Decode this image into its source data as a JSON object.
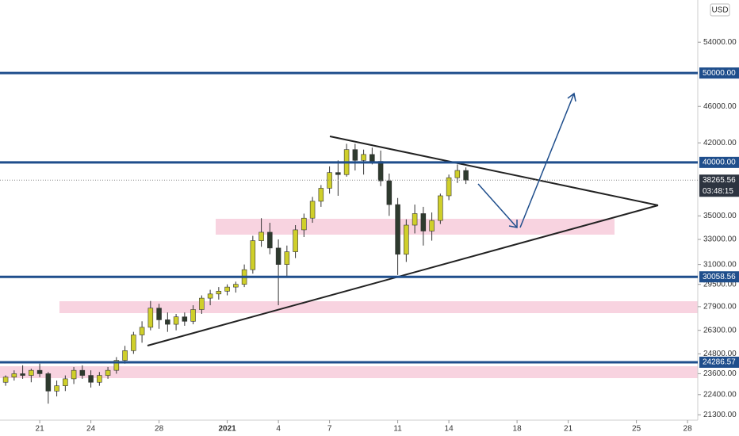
{
  "chart_data": {
    "type": "candlestick",
    "currency": "USD",
    "log_scale": true,
    "up_color": "#cfcf2a",
    "down_color": "#2e3a2e",
    "level_color": "#1f4e8c",
    "x": [
      -2.5,
      -2,
      -1.5,
      -1,
      -0.5,
      0,
      0.5,
      1,
      1.5,
      2,
      2.5,
      3,
      3.5,
      4,
      4.5,
      5,
      5.5,
      6,
      6.5,
      7,
      7.5,
      8,
      8.5,
      9,
      9.5,
      10,
      10.5,
      11,
      11.5,
      12,
      12.5,
      13,
      13.5,
      14,
      14.5,
      15,
      15.5,
      16,
      16.5,
      17,
      17.5,
      18,
      18.5,
      19,
      19.5,
      20,
      20.5,
      21,
      21.5,
      22,
      22.5,
      23,
      23.5,
      24,
      24.5,
      25
    ],
    "open": [
      22900,
      23100,
      23400,
      23600,
      23500,
      23800,
      23600,
      22600,
      22900,
      23300,
      23800,
      23500,
      23100,
      23500,
      23800,
      24400,
      25000,
      26000,
      26500,
      27800,
      27000,
      26700,
      27200,
      26900,
      27700,
      28500,
      28800,
      29000,
      29300,
      29500,
      30600,
      32900,
      33600,
      32300,
      31000,
      32000,
      33800,
      34800,
      36300,
      37500,
      39000,
      38800,
      41300,
      40200,
      40800,
      40100,
      38200,
      36000,
      31800,
      34200,
      35200,
      33700,
      34600,
      36800,
      38500,
      39200
    ],
    "high": [
      23300,
      23500,
      23800,
      24100,
      23900,
      24200,
      23700,
      23200,
      23500,
      24000,
      24100,
      23800,
      23700,
      24000,
      24600,
      25300,
      26200,
      26900,
      28300,
      28100,
      27500,
      27400,
      27500,
      28000,
      28700,
      29100,
      29300,
      29500,
      29700,
      31000,
      33300,
      34800,
      34400,
      33000,
      32500,
      34200,
      35200,
      36700,
      37800,
      39600,
      40200,
      41900,
      41900,
      41300,
      41500,
      41200,
      38900,
      36600,
      34700,
      36000,
      35800,
      35300,
      37000,
      38800,
      39800,
      39500
    ],
    "low": [
      22700,
      22900,
      23200,
      23300,
      23100,
      23400,
      21900,
      22300,
      22600,
      23000,
      23300,
      22800,
      22900,
      23300,
      23600,
      24200,
      24800,
      25500,
      26300,
      26400,
      26200,
      26300,
      26600,
      26700,
      27400,
      28000,
      28400,
      28700,
      28900,
      29300,
      30300,
      32400,
      31800,
      28000,
      30000,
      31500,
      33200,
      34400,
      35800,
      37000,
      36800,
      38600,
      39200,
      38800,
      39800,
      37700,
      35000,
      30200,
      31200,
      33500,
      32500,
      32900,
      34300,
      36400,
      38000,
      37900
    ],
    "close": [
      23100,
      23400,
      23600,
      23500,
      23800,
      23600,
      22600,
      22900,
      23300,
      23800,
      23500,
      23100,
      23500,
      23800,
      24400,
      25000,
      26000,
      26500,
      27800,
      27000,
      26700,
      27200,
      26900,
      27700,
      28500,
      28800,
      29000,
      29300,
      29500,
      30600,
      32900,
      33600,
      32300,
      31000,
      32000,
      33800,
      34800,
      36300,
      37500,
      39000,
      38800,
      41300,
      40200,
      40800,
      40100,
      38200,
      36000,
      31800,
      34200,
      35200,
      33700,
      34600,
      36800,
      38500,
      39200,
      38265.56
    ],
    "xlim": [
      -2.33,
      38.6
    ],
    "xticks": [
      {
        "value": 0,
        "label": "21"
      },
      {
        "value": 3,
        "label": "24"
      },
      {
        "value": 7,
        "label": "28"
      },
      {
        "value": 11,
        "label": "2021"
      },
      {
        "value": 14,
        "label": "4"
      },
      {
        "value": 17,
        "label": "7"
      },
      {
        "value": 21,
        "label": "11"
      },
      {
        "value": 24,
        "label": "14"
      },
      {
        "value": 28,
        "label": "18"
      },
      {
        "value": 31,
        "label": "21"
      },
      {
        "value": 35,
        "label": "25"
      },
      {
        "value": 38,
        "label": "28"
      }
    ],
    "ylim": [
      21100,
      60000
    ],
    "yticks": [
      {
        "value": 21300,
        "label": "21300.00"
      },
      {
        "value": 22400,
        "label": "22400.00"
      },
      {
        "value": 23600,
        "label": "23600.00"
      },
      {
        "value": 24800,
        "label": "24800.00"
      },
      {
        "value": 26300,
        "label": "26300.00"
      },
      {
        "value": 27900,
        "label": "27900.00"
      },
      {
        "value": 29500,
        "label": "29500.00"
      },
      {
        "value": 31000,
        "label": "31000.00"
      },
      {
        "value": 33000,
        "label": "33000.00"
      },
      {
        "value": 35000,
        "label": "35000.00"
      },
      {
        "value": 42000,
        "label": "42000.00"
      },
      {
        "value": 46000,
        "label": "46000.00"
      },
      {
        "value": 54000,
        "label": "54000.00"
      }
    ],
    "levels": [
      {
        "value": 50000,
        "label": "50000.00"
      },
      {
        "value": 40000,
        "label": "40000.00"
      },
      {
        "value": 30058.56,
        "label": "30058.56"
      },
      {
        "value": 24286.57,
        "label": "24286.57"
      }
    ],
    "last_price": {
      "value": 38265.56,
      "label": "38265.56"
    },
    "countdown": "03:48:15"
  }
}
